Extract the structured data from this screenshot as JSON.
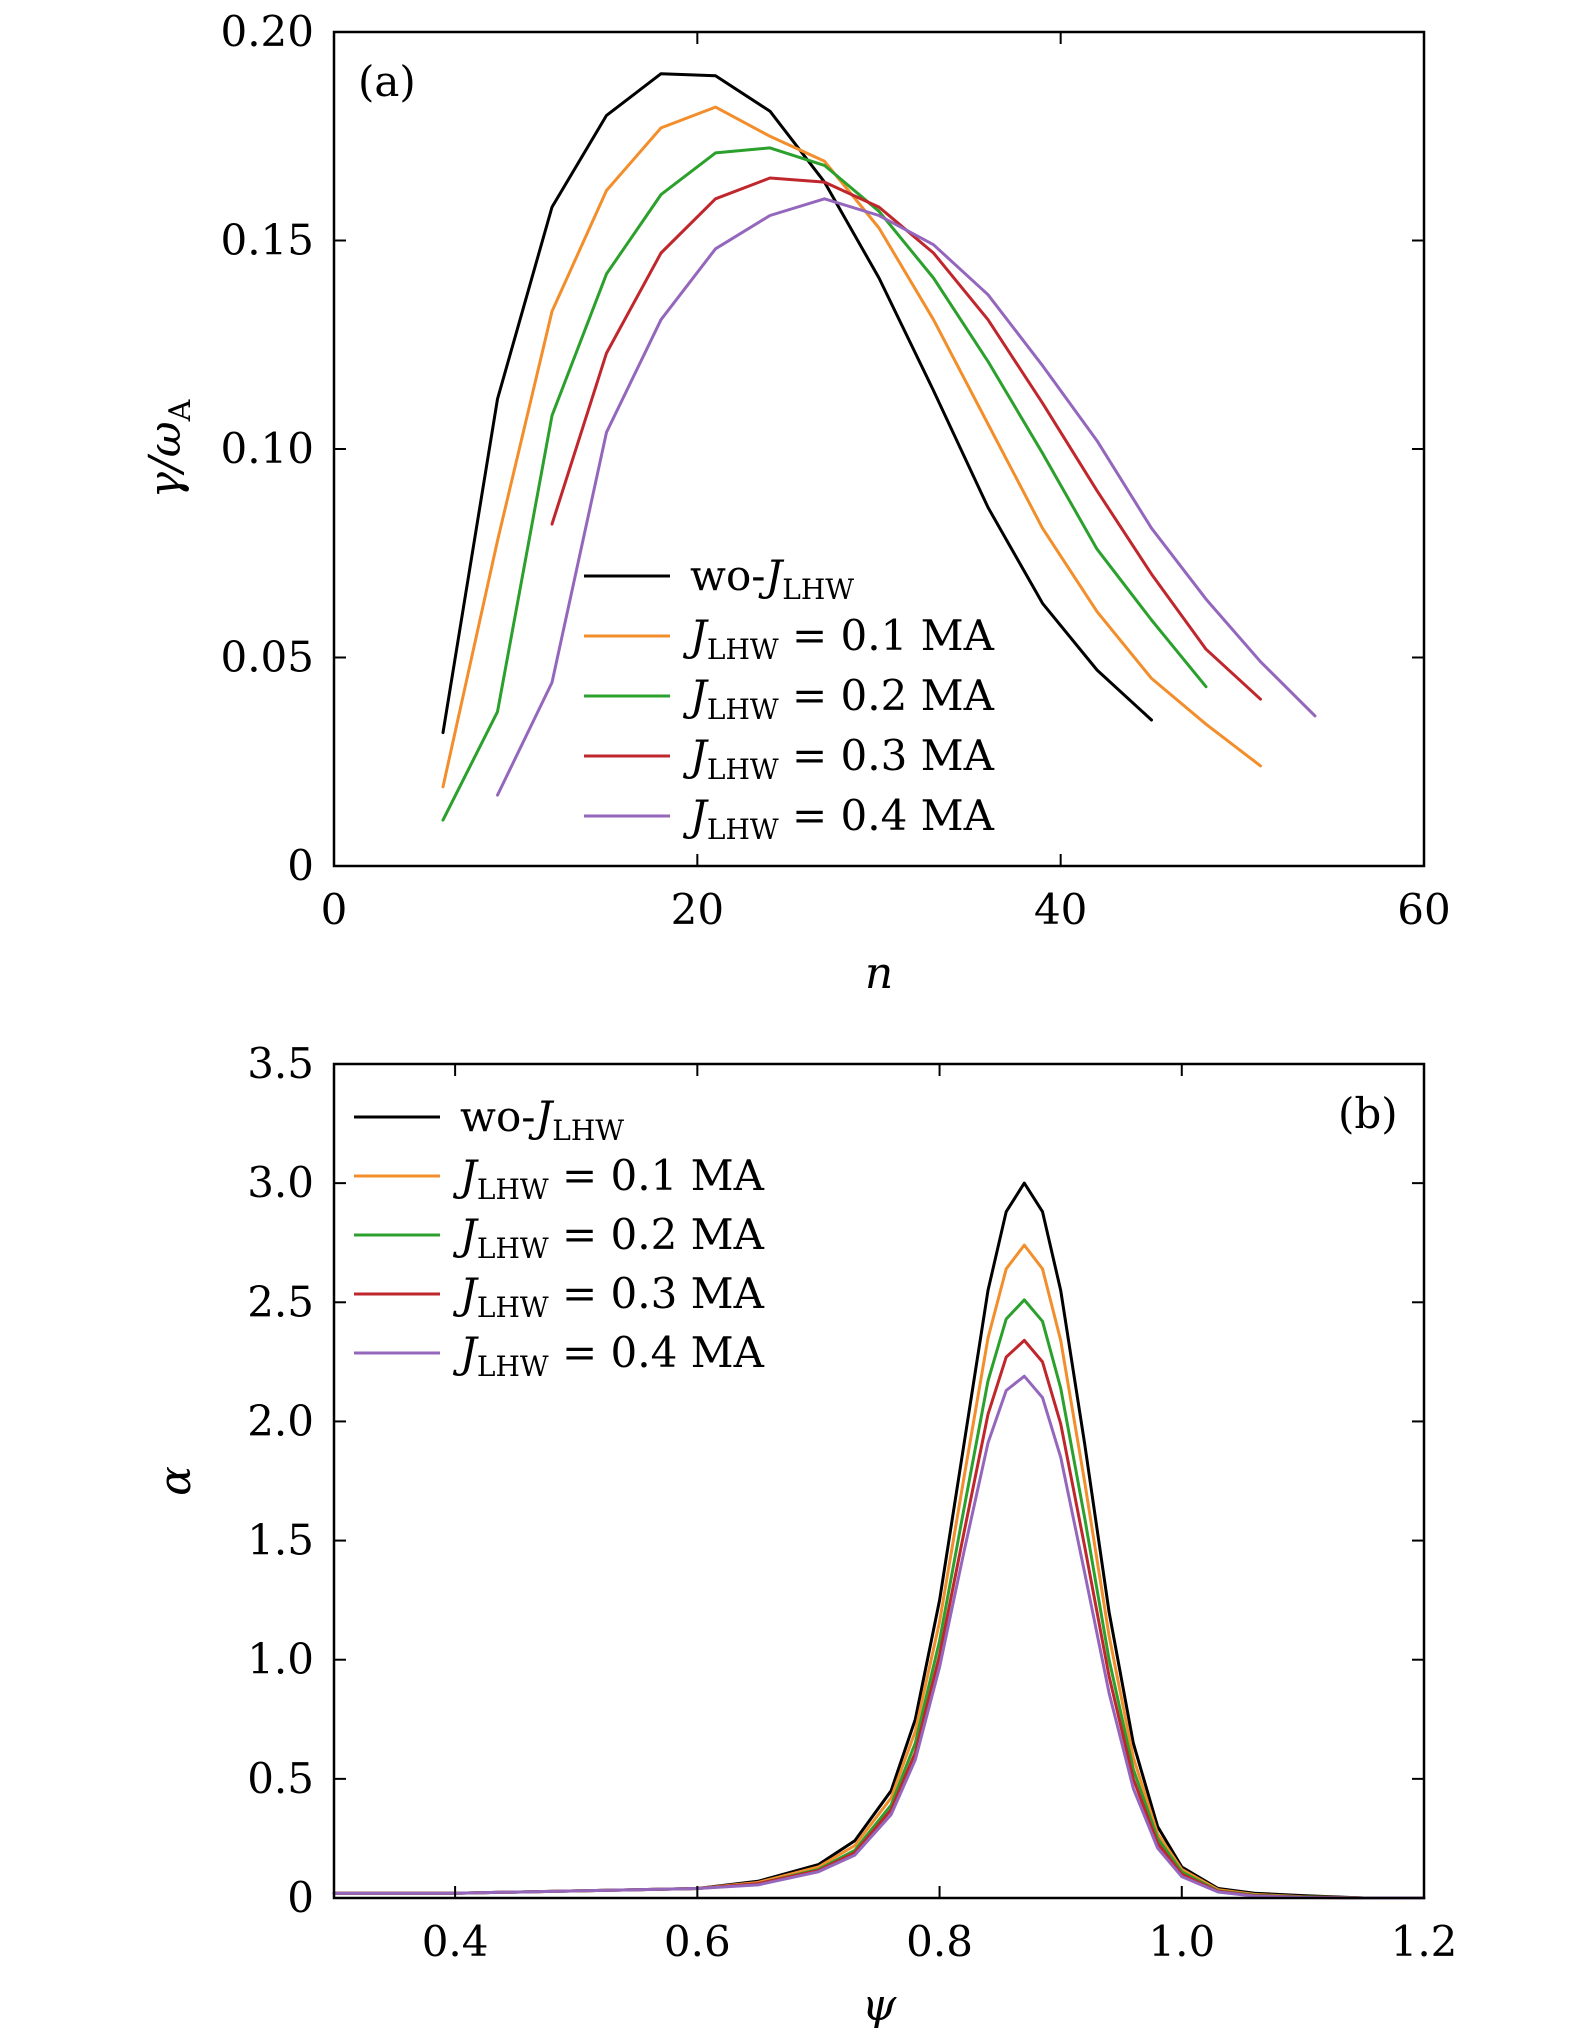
{
  "chart_data": [
    {
      "type": "line",
      "panel_label": "(a)",
      "xlabel": "n",
      "ylabel": "γ/ω_A",
      "ylabel_main": "γ/ω",
      "ylabel_sub": "A",
      "xlim": [
        0,
        60
      ],
      "ylim": [
        0,
        0.2
      ],
      "xticks": [
        0,
        20,
        40,
        60
      ],
      "xtick_labels": [
        "0",
        "20",
        "40",
        "60"
      ],
      "yticks": [
        0,
        0.05,
        0.1,
        0.15,
        0.2
      ],
      "ytick_labels": [
        "0",
        "0.05",
        "0.10",
        "0.15",
        "0.20"
      ],
      "legend_position": "bottom-center",
      "series": [
        {
          "name": "wo-J_LHW",
          "legend_prefix": "wo-",
          "legend_main": "J",
          "legend_sub": "LHW",
          "legend_suffix": "",
          "color": "#000000",
          "x": [
            6,
            9,
            12,
            15,
            18,
            21,
            24,
            27,
            30,
            33,
            36,
            39,
            42,
            45
          ],
          "y": [
            0.032,
            0.112,
            0.158,
            0.18,
            0.19,
            0.1895,
            0.181,
            0.164,
            0.141,
            0.114,
            0.086,
            0.063,
            0.047,
            0.035
          ]
        },
        {
          "name": "J_LHW = 0.1 MA",
          "legend_prefix": "",
          "legend_main": "J",
          "legend_sub": "LHW",
          "legend_suffix": " = 0.1  MA",
          "color": "#f28e2b",
          "x": [
            6,
            9,
            12,
            15,
            18,
            21,
            24,
            27,
            30,
            33,
            36,
            39,
            42,
            45,
            48,
            51
          ],
          "y": [
            0.019,
            0.078,
            0.133,
            0.162,
            0.177,
            0.182,
            0.175,
            0.169,
            0.153,
            0.131,
            0.106,
            0.081,
            0.061,
            0.045,
            0.034,
            0.024
          ]
        },
        {
          "name": "J_LHW = 0.2 MA",
          "legend_prefix": "",
          "legend_main": "J",
          "legend_sub": "LHW",
          "legend_suffix": " = 0.2  MA",
          "color": "#2ca02c",
          "x": [
            6,
            9,
            12,
            15,
            18,
            21,
            24,
            27,
            30,
            33,
            36,
            39,
            42,
            45,
            48
          ],
          "y": [
            0.011,
            0.037,
            0.108,
            0.142,
            0.161,
            0.171,
            0.1722,
            0.168,
            0.157,
            0.141,
            0.121,
            0.099,
            0.076,
            0.059,
            0.043
          ]
        },
        {
          "name": "J_LHW = 0.3 MA",
          "legend_prefix": "",
          "legend_main": "J",
          "legend_sub": "LHW",
          "legend_suffix": " = 0.3  MA",
          "color": "#c0272d",
          "x": [
            12,
            15,
            18,
            21,
            24,
            27,
            30,
            33,
            36,
            39,
            42,
            45,
            48,
            51
          ],
          "y": [
            0.082,
            0.123,
            0.147,
            0.16,
            0.165,
            0.164,
            0.158,
            0.147,
            0.131,
            0.111,
            0.09,
            0.07,
            0.052,
            0.04
          ]
        },
        {
          "name": "J_LHW = 0.4 MA",
          "legend_prefix": "",
          "legend_main": "J",
          "legend_sub": "LHW",
          "legend_suffix": " = 0.4  MA",
          "color": "#9467bd",
          "x": [
            9,
            12,
            15,
            18,
            21,
            24,
            27,
            30,
            33,
            36,
            39,
            42,
            45,
            48,
            51,
            54
          ],
          "y": [
            0.017,
            0.044,
            0.104,
            0.131,
            0.148,
            0.156,
            0.16,
            0.156,
            0.149,
            0.137,
            0.12,
            0.102,
            0.081,
            0.064,
            0.049,
            0.036
          ]
        }
      ]
    },
    {
      "type": "line",
      "panel_label": "(b)",
      "xlabel": "ψ",
      "ylabel": "α",
      "xlim": [
        0.3,
        1.2
      ],
      "ylim": [
        0,
        3.5
      ],
      "xticks": [
        0.4,
        0.6,
        0.8,
        1.0,
        1.2
      ],
      "xtick_labels": [
        "0.4",
        "0.6",
        "0.8",
        "1.0",
        "1.2"
      ],
      "yticks": [
        0,
        0.5,
        1.0,
        1.5,
        2.0,
        2.5,
        3.0,
        3.5
      ],
      "ytick_labels": [
        "0",
        "0.5",
        "1.0",
        "1.5",
        "2.0",
        "2.5",
        "3.0",
        "3.5"
      ],
      "legend_position": "top-left",
      "series": [
        {
          "name": "wo-J_LHW",
          "legend_prefix": "wo-",
          "legend_main": "J",
          "legend_sub": "LHW",
          "legend_suffix": "",
          "color": "#000000",
          "x": [
            0.3,
            0.4,
            0.5,
            0.6,
            0.65,
            0.7,
            0.73,
            0.76,
            0.78,
            0.8,
            0.82,
            0.84,
            0.855,
            0.87,
            0.885,
            0.9,
            0.92,
            0.94,
            0.96,
            0.98,
            1.0,
            1.03,
            1.06,
            1.1,
            1.15,
            1.2
          ],
          "y": [
            0.02,
            0.02,
            0.03,
            0.04,
            0.07,
            0.14,
            0.24,
            0.45,
            0.75,
            1.25,
            1.9,
            2.55,
            2.88,
            3.0,
            2.88,
            2.55,
            1.9,
            1.2,
            0.65,
            0.3,
            0.13,
            0.04,
            0.02,
            0.01,
            0.0,
            0.0
          ]
        },
        {
          "name": "J_LHW = 0.1 MA",
          "legend_prefix": "",
          "legend_main": "J",
          "legend_sub": "LHW",
          "legend_suffix": " = 0.1  MA",
          "color": "#f28e2b",
          "x": [
            0.3,
            0.4,
            0.5,
            0.6,
            0.65,
            0.7,
            0.73,
            0.76,
            0.78,
            0.8,
            0.82,
            0.84,
            0.855,
            0.87,
            0.885,
            0.9,
            0.92,
            0.94,
            0.96,
            0.98,
            1.0,
            1.03,
            1.06,
            1.1,
            1.15,
            1.2
          ],
          "y": [
            0.02,
            0.02,
            0.03,
            0.04,
            0.065,
            0.13,
            0.22,
            0.42,
            0.7,
            1.16,
            1.76,
            2.35,
            2.64,
            2.74,
            2.64,
            2.34,
            1.74,
            1.1,
            0.59,
            0.27,
            0.12,
            0.035,
            0.015,
            0.005,
            0.0,
            0.0
          ]
        },
        {
          "name": "J_LHW = 0.2 MA",
          "legend_prefix": "",
          "legend_main": "J",
          "legend_sub": "LHW",
          "legend_suffix": " = 0.2  MA",
          "color": "#2ca02c",
          "x": [
            0.3,
            0.4,
            0.5,
            0.6,
            0.65,
            0.7,
            0.73,
            0.76,
            0.78,
            0.8,
            0.82,
            0.84,
            0.855,
            0.87,
            0.885,
            0.9,
            0.92,
            0.94,
            0.96,
            0.98,
            1.0,
            1.03,
            1.06,
            1.1,
            1.15,
            1.2
          ],
          "y": [
            0.02,
            0.02,
            0.03,
            0.04,
            0.06,
            0.12,
            0.2,
            0.39,
            0.65,
            1.08,
            1.63,
            2.17,
            2.43,
            2.51,
            2.42,
            2.14,
            1.59,
            1.0,
            0.54,
            0.25,
            0.11,
            0.03,
            0.012,
            0.004,
            0.0,
            0.0
          ]
        },
        {
          "name": "J_LHW = 0.3 MA",
          "legend_prefix": "",
          "legend_main": "J",
          "legend_sub": "LHW",
          "legend_suffix": " = 0.3  MA",
          "color": "#c0272d",
          "x": [
            0.3,
            0.4,
            0.5,
            0.6,
            0.65,
            0.7,
            0.73,
            0.76,
            0.78,
            0.8,
            0.82,
            0.84,
            0.855,
            0.87,
            0.885,
            0.9,
            0.92,
            0.94,
            0.96,
            0.98,
            1.0,
            1.03,
            1.06,
            1.1,
            1.15,
            1.2
          ],
          "y": [
            0.02,
            0.02,
            0.03,
            0.04,
            0.06,
            0.115,
            0.19,
            0.37,
            0.61,
            1.02,
            1.53,
            2.03,
            2.27,
            2.34,
            2.25,
            1.99,
            1.47,
            0.93,
            0.5,
            0.23,
            0.1,
            0.028,
            0.01,
            0.003,
            0.0,
            0.0
          ]
        },
        {
          "name": "J_LHW = 0.4 MA",
          "legend_prefix": "",
          "legend_main": "J",
          "legend_sub": "LHW",
          "legend_suffix": " = 0.4  MA",
          "color": "#9467bd",
          "x": [
            0.3,
            0.4,
            0.5,
            0.6,
            0.65,
            0.7,
            0.73,
            0.76,
            0.78,
            0.8,
            0.82,
            0.84,
            0.855,
            0.87,
            0.885,
            0.9,
            0.92,
            0.94,
            0.96,
            0.98,
            1.0,
            1.03,
            1.06,
            1.1,
            1.15,
            1.2
          ],
          "y": [
            0.02,
            0.02,
            0.03,
            0.04,
            0.055,
            0.11,
            0.18,
            0.35,
            0.58,
            0.97,
            1.45,
            1.91,
            2.13,
            2.19,
            2.1,
            1.85,
            1.36,
            0.86,
            0.46,
            0.21,
            0.09,
            0.025,
            0.008,
            0.002,
            0.0,
            0.0
          ]
        }
      ]
    }
  ]
}
